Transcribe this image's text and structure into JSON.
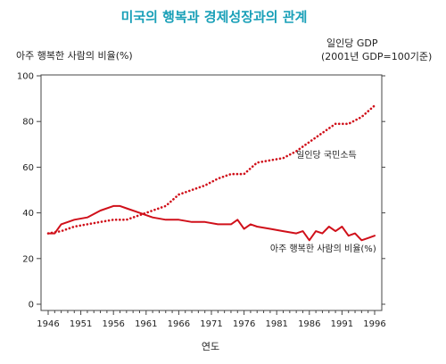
{
  "chart_data": {
    "type": "line",
    "title": "미국의 행복과 경제성장과의 관계",
    "xlabel": "연도",
    "ylabel_left": "아주 행복한 사람의 비율(%)",
    "ylabel_right_line1": "일인당 GDP",
    "ylabel_right_line2": "(2001년 GDP=100기준)",
    "xlim": [
      1945,
      1997
    ],
    "ylim": [
      0,
      100
    ],
    "x_ticks": [
      1946,
      1951,
      1956,
      1961,
      1966,
      1971,
      1976,
      1981,
      1986,
      1991,
      1996
    ],
    "y_ticks": [
      0,
      20,
      40,
      60,
      80,
      100
    ],
    "series": [
      {
        "name": "일인당 국민소득",
        "style": "dotted",
        "color": "#d0101a",
        "x": [
          1946,
          1948,
          1950,
          1952,
          1954,
          1956,
          1958,
          1960,
          1962,
          1964,
          1966,
          1968,
          1970,
          1972,
          1974,
          1976,
          1978,
          1980,
          1982,
          1984,
          1986,
          1988,
          1990,
          1992,
          1994,
          1996
        ],
        "y": [
          31,
          32,
          34,
          35,
          36,
          37,
          37,
          39,
          41,
          43,
          48,
          50,
          52,
          55,
          57,
          57,
          62,
          63,
          64,
          67,
          71,
          75,
          79,
          79,
          82,
          87
        ]
      },
      {
        "name": "아주 행복한 사람의 비율(%)",
        "style": "solid",
        "color": "#d0101a",
        "x": [
          1946,
          1947,
          1948,
          1950,
          1952,
          1954,
          1956,
          1957,
          1958,
          1960,
          1962,
          1964,
          1966,
          1968,
          1970,
          1972,
          1974,
          1975,
          1976,
          1977,
          1978,
          1980,
          1982,
          1984,
          1985,
          1986,
          1987,
          1988,
          1989,
          1990,
          1991,
          1992,
          1993,
          1994,
          1995,
          1996
        ],
        "y": [
          31,
          31,
          35,
          37,
          38,
          41,
          43,
          43,
          42,
          40,
          38,
          37,
          37,
          36,
          36,
          35,
          35,
          37,
          33,
          35,
          34,
          33,
          32,
          31,
          32,
          28,
          32,
          31,
          34,
          32,
          34,
          30,
          31,
          28,
          29,
          30
        ]
      }
    ],
    "annotations": [
      {
        "text": "일인당 국민소득",
        "x": 1984,
        "y": 64
      },
      {
        "text": "아주 행복한 사람의 비율(%)",
        "x": 1980,
        "y": 23
      }
    ],
    "grid": false,
    "legend": "none"
  }
}
